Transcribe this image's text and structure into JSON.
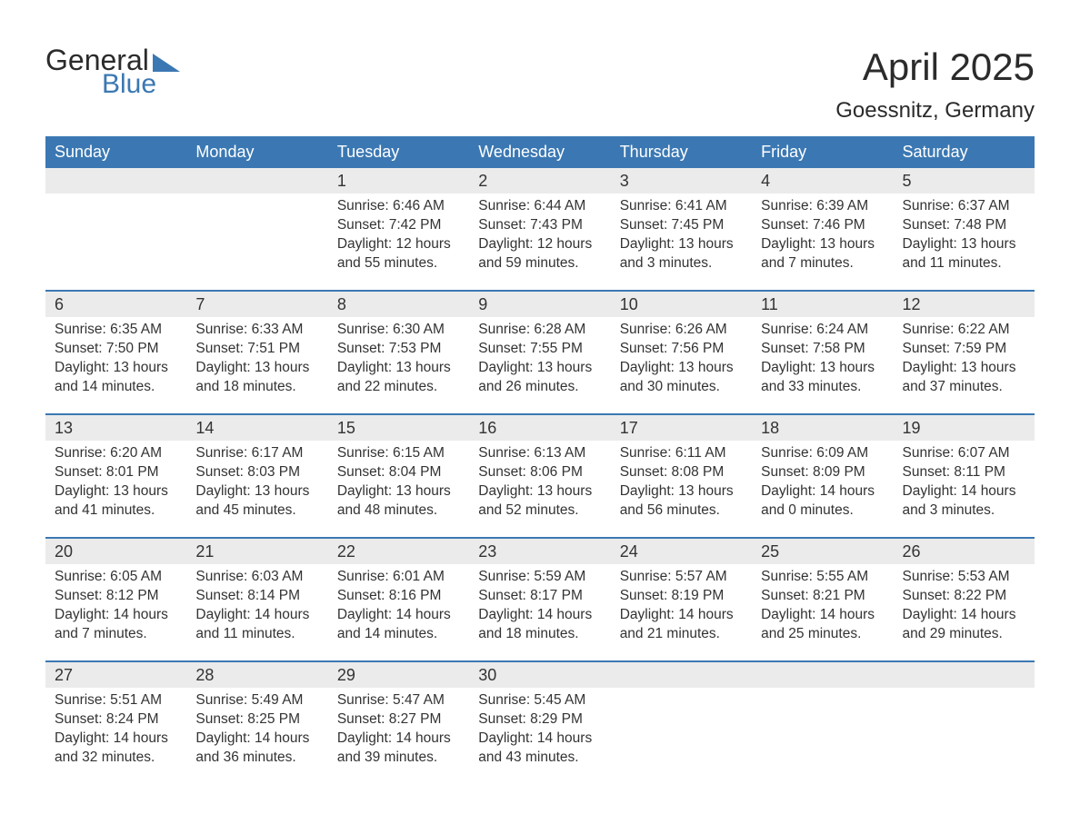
{
  "logo": {
    "word1": "General",
    "word2": "Blue"
  },
  "title": "April 2025",
  "location": "Goessnitz, Germany",
  "colors": {
    "header_bg": "#3b78b3",
    "header_fg": "#ffffff",
    "daynum_bg": "#ebebeb",
    "week_border": "#3b78b3",
    "text": "#333333",
    "background": "#ffffff"
  },
  "weekdays": [
    "Sunday",
    "Monday",
    "Tuesday",
    "Wednesday",
    "Thursday",
    "Friday",
    "Saturday"
  ],
  "weeks": [
    [
      null,
      null,
      {
        "n": "1",
        "sr": "Sunrise: 6:46 AM",
        "ss": "Sunset: 7:42 PM",
        "d1": "Daylight: 12 hours",
        "d2": "and 55 minutes."
      },
      {
        "n": "2",
        "sr": "Sunrise: 6:44 AM",
        "ss": "Sunset: 7:43 PM",
        "d1": "Daylight: 12 hours",
        "d2": "and 59 minutes."
      },
      {
        "n": "3",
        "sr": "Sunrise: 6:41 AM",
        "ss": "Sunset: 7:45 PM",
        "d1": "Daylight: 13 hours",
        "d2": "and 3 minutes."
      },
      {
        "n": "4",
        "sr": "Sunrise: 6:39 AM",
        "ss": "Sunset: 7:46 PM",
        "d1": "Daylight: 13 hours",
        "d2": "and 7 minutes."
      },
      {
        "n": "5",
        "sr": "Sunrise: 6:37 AM",
        "ss": "Sunset: 7:48 PM",
        "d1": "Daylight: 13 hours",
        "d2": "and 11 minutes."
      }
    ],
    [
      {
        "n": "6",
        "sr": "Sunrise: 6:35 AM",
        "ss": "Sunset: 7:50 PM",
        "d1": "Daylight: 13 hours",
        "d2": "and 14 minutes."
      },
      {
        "n": "7",
        "sr": "Sunrise: 6:33 AM",
        "ss": "Sunset: 7:51 PM",
        "d1": "Daylight: 13 hours",
        "d2": "and 18 minutes."
      },
      {
        "n": "8",
        "sr": "Sunrise: 6:30 AM",
        "ss": "Sunset: 7:53 PM",
        "d1": "Daylight: 13 hours",
        "d2": "and 22 minutes."
      },
      {
        "n": "9",
        "sr": "Sunrise: 6:28 AM",
        "ss": "Sunset: 7:55 PM",
        "d1": "Daylight: 13 hours",
        "d2": "and 26 minutes."
      },
      {
        "n": "10",
        "sr": "Sunrise: 6:26 AM",
        "ss": "Sunset: 7:56 PM",
        "d1": "Daylight: 13 hours",
        "d2": "and 30 minutes."
      },
      {
        "n": "11",
        "sr": "Sunrise: 6:24 AM",
        "ss": "Sunset: 7:58 PM",
        "d1": "Daylight: 13 hours",
        "d2": "and 33 minutes."
      },
      {
        "n": "12",
        "sr": "Sunrise: 6:22 AM",
        "ss": "Sunset: 7:59 PM",
        "d1": "Daylight: 13 hours",
        "d2": "and 37 minutes."
      }
    ],
    [
      {
        "n": "13",
        "sr": "Sunrise: 6:20 AM",
        "ss": "Sunset: 8:01 PM",
        "d1": "Daylight: 13 hours",
        "d2": "and 41 minutes."
      },
      {
        "n": "14",
        "sr": "Sunrise: 6:17 AM",
        "ss": "Sunset: 8:03 PM",
        "d1": "Daylight: 13 hours",
        "d2": "and 45 minutes."
      },
      {
        "n": "15",
        "sr": "Sunrise: 6:15 AM",
        "ss": "Sunset: 8:04 PM",
        "d1": "Daylight: 13 hours",
        "d2": "and 48 minutes."
      },
      {
        "n": "16",
        "sr": "Sunrise: 6:13 AM",
        "ss": "Sunset: 8:06 PM",
        "d1": "Daylight: 13 hours",
        "d2": "and 52 minutes."
      },
      {
        "n": "17",
        "sr": "Sunrise: 6:11 AM",
        "ss": "Sunset: 8:08 PM",
        "d1": "Daylight: 13 hours",
        "d2": "and 56 minutes."
      },
      {
        "n": "18",
        "sr": "Sunrise: 6:09 AM",
        "ss": "Sunset: 8:09 PM",
        "d1": "Daylight: 14 hours",
        "d2": "and 0 minutes."
      },
      {
        "n": "19",
        "sr": "Sunrise: 6:07 AM",
        "ss": "Sunset: 8:11 PM",
        "d1": "Daylight: 14 hours",
        "d2": "and 3 minutes."
      }
    ],
    [
      {
        "n": "20",
        "sr": "Sunrise: 6:05 AM",
        "ss": "Sunset: 8:12 PM",
        "d1": "Daylight: 14 hours",
        "d2": "and 7 minutes."
      },
      {
        "n": "21",
        "sr": "Sunrise: 6:03 AM",
        "ss": "Sunset: 8:14 PM",
        "d1": "Daylight: 14 hours",
        "d2": "and 11 minutes."
      },
      {
        "n": "22",
        "sr": "Sunrise: 6:01 AM",
        "ss": "Sunset: 8:16 PM",
        "d1": "Daylight: 14 hours",
        "d2": "and 14 minutes."
      },
      {
        "n": "23",
        "sr": "Sunrise: 5:59 AM",
        "ss": "Sunset: 8:17 PM",
        "d1": "Daylight: 14 hours",
        "d2": "and 18 minutes."
      },
      {
        "n": "24",
        "sr": "Sunrise: 5:57 AM",
        "ss": "Sunset: 8:19 PM",
        "d1": "Daylight: 14 hours",
        "d2": "and 21 minutes."
      },
      {
        "n": "25",
        "sr": "Sunrise: 5:55 AM",
        "ss": "Sunset: 8:21 PM",
        "d1": "Daylight: 14 hours",
        "d2": "and 25 minutes."
      },
      {
        "n": "26",
        "sr": "Sunrise: 5:53 AM",
        "ss": "Sunset: 8:22 PM",
        "d1": "Daylight: 14 hours",
        "d2": "and 29 minutes."
      }
    ],
    [
      {
        "n": "27",
        "sr": "Sunrise: 5:51 AM",
        "ss": "Sunset: 8:24 PM",
        "d1": "Daylight: 14 hours",
        "d2": "and 32 minutes."
      },
      {
        "n": "28",
        "sr": "Sunrise: 5:49 AM",
        "ss": "Sunset: 8:25 PM",
        "d1": "Daylight: 14 hours",
        "d2": "and 36 minutes."
      },
      {
        "n": "29",
        "sr": "Sunrise: 5:47 AM",
        "ss": "Sunset: 8:27 PM",
        "d1": "Daylight: 14 hours",
        "d2": "and 39 minutes."
      },
      {
        "n": "30",
        "sr": "Sunrise: 5:45 AM",
        "ss": "Sunset: 8:29 PM",
        "d1": "Daylight: 14 hours",
        "d2": "and 43 minutes."
      },
      null,
      null,
      null
    ]
  ]
}
